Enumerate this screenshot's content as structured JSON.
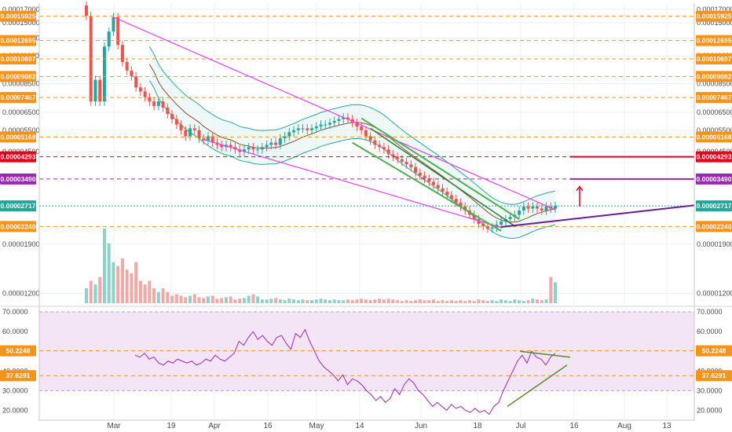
{
  "chart_data": {
    "type": "candlestick",
    "x_tick_labels": [
      "Mar",
      "19",
      "Apr",
      "16",
      "May",
      "14",
      "Jun",
      "18",
      "Jul",
      "16",
      "Aug",
      "13"
    ],
    "price_axis": {
      "scale": "log",
      "ylim": [
        1.08e-05,
        0.00018
      ],
      "tick_labels": [
        "0.00017000",
        "0.00015000",
        "0.00013000",
        "0.00011000",
        "0.00008500",
        "0.00006500",
        "0.00005500",
        "0.00004500",
        "0.00001900",
        "0.00001200"
      ],
      "tick_values": [
        0.00017,
        0.00015,
        0.00013,
        0.00011,
        8.5e-05,
        6.5e-05,
        5.5e-05,
        4.5e-05,
        1.9e-05,
        1.2e-05
      ]
    },
    "levels": [
      {
        "label": "0.00015925",
        "value": 0.00015925,
        "color": "#f7931a"
      },
      {
        "label": "0.00012695",
        "value": 0.00012695,
        "color": "#f7931a"
      },
      {
        "label": "0.00010697",
        "value": 0.00010697,
        "color": "#f7931a"
      },
      {
        "label": "0.00009082",
        "value": 9.082e-05,
        "color": "#f7931a"
      },
      {
        "label": "0.00007467",
        "value": 7.467e-05,
        "color": "#f7931a"
      },
      {
        "label": "0.00005168",
        "value": 5.168e-05,
        "color": "#f7931a"
      },
      {
        "label": "0.00004293",
        "value": 4.293e-05,
        "color": "#e3001b"
      },
      {
        "label": "0.00003490",
        "value": 3.49e-05,
        "color": "#9c27b0"
      },
      {
        "label": "0.00002717",
        "value": 2.717e-05,
        "color": "#26a69a"
      },
      {
        "label": "0.00002240",
        "value": 2.24e-05,
        "color": "#f7931a"
      }
    ],
    "candles_close": [
      0.00016,
      7.2e-05,
      8.8e-05,
      7.2e-05,
      0.00012,
      0.000138,
      0.000158,
      0.000122,
      0.000104,
      9.6e-05,
      9.1e-05,
      8.2e-05,
      7.9e-05,
      7.5e-05,
      7.2e-05,
      6.9e-05,
      7.2e-05,
      6.8e-05,
      6.4e-05,
      6.1e-05,
      5.8e-05,
      5.5e-05,
      5.2e-05,
      5.6e-05,
      5.5e-05,
      5.1e-05,
      5e-05,
      5.2e-05,
      4.9e-05,
      4.8e-05,
      4.7e-05,
      4.8e-05,
      4.7e-05,
      4.6e-05,
      4.5e-05,
      4.6e-05,
      4.7e-05,
      4.6e-05,
      4.6e-05,
      4.7e-05,
      4.8e-05,
      4.9e-05,
      4.8e-05,
      5.1e-05,
      5.2e-05,
      5.4e-05,
      5.5e-05,
      5.6e-05,
      5.6e-05,
      5.5e-05,
      5.6e-05,
      5.7e-05,
      5.8e-05,
      5.8e-05,
      5.9e-05,
      6e-05,
      6.1e-05,
      6.2e-05,
      6.1e-05,
      5.9e-05,
      5.7e-05,
      5.5e-05,
      5.2e-05,
      5e-05,
      4.8e-05,
      4.7e-05,
      4.6e-05,
      4.4e-05,
      4.3e-05,
      4.2e-05,
      4.1e-05,
      4e-05,
      3.9e-05,
      3.7e-05,
      3.6e-05,
      3.5e-05,
      3.4e-05,
      3.3e-05,
      3.2e-05,
      3.1e-05,
      3e-05,
      2.9e-05,
      2.8e-05,
      2.7e-05,
      2.6e-05,
      2.5e-05,
      2.4e-05,
      2.3e-05,
      2.25e-05,
      2.2e-05,
      2.22e-05,
      2.28e-05,
      2.35e-05,
      2.4e-05,
      2.45e-05,
      2.5e-05,
      2.6e-05,
      2.7e-05,
      2.65e-05,
      2.7e-05,
      2.65e-05,
      2.6e-05,
      2.7e-05,
      2.65e-05,
      2.717e-05
    ],
    "rsi_axis": {
      "ylim": [
        15,
        72
      ],
      "tick_labels": [
        "70.0000",
        "60.0000",
        "50.0000",
        "40.0000",
        "30.0000",
        "20.0000"
      ],
      "tick_values": [
        70,
        60,
        50,
        40,
        30,
        20
      ],
      "band": [
        30,
        70
      ]
    },
    "rsi_levels": [
      {
        "label": "50.2248",
        "value": 50.2248,
        "color": "#f7931a"
      },
      {
        "label": "37.6291",
        "value": 37.6291,
        "color": "#f7931a"
      }
    ],
    "rsi_values": [
      48,
      47,
      49,
      46,
      47,
      44,
      43,
      45,
      44,
      46,
      45,
      44,
      45,
      43,
      44,
      46,
      45,
      48,
      46,
      45,
      47,
      49,
      55,
      53,
      57,
      60,
      56,
      58,
      55,
      53,
      57,
      58,
      54,
      51,
      59,
      57,
      61,
      55,
      50,
      45,
      42,
      40,
      38,
      35,
      38,
      33,
      36,
      35,
      33,
      30,
      28,
      25,
      27,
      24,
      26,
      31,
      28,
      33,
      36,
      34,
      30,
      28,
      25,
      22,
      24,
      22,
      20,
      23,
      21,
      22,
      20,
      19,
      21,
      19,
      20,
      18,
      22,
      24,
      30,
      35,
      40,
      45,
      48,
      44,
      50,
      47,
      46,
      43,
      47,
      49
    ],
    "volume_relative": [
      0.2,
      0.3,
      0.25,
      0.35,
      1.0,
      0.8,
      0.55,
      0.5,
      0.6,
      0.45,
      0.4,
      0.55,
      0.3,
      0.25,
      0.3,
      0.2,
      0.15,
      0.2,
      0.15,
      0.1,
      0.12,
      0.1,
      0.08,
      0.1,
      0.12,
      0.08,
      0.07,
      0.09,
      0.1,
      0.06,
      0.07,
      0.08,
      0.09,
      0.05,
      0.06,
      0.07,
      0.1,
      0.12,
      0.09,
      0.05,
      0.05,
      0.06,
      0.07,
      0.05,
      0.04,
      0.06,
      0.05,
      0.04,
      0.05,
      0.04,
      0.04,
      0.05,
      0.06,
      0.05,
      0.04,
      0.05,
      0.04,
      0.04,
      0.05,
      0.04,
      0.05,
      0.06,
      0.05,
      0.04,
      0.05,
      0.06,
      0.05,
      0.06,
      0.05,
      0.04,
      0.03,
      0.04,
      0.03,
      0.04,
      0.05,
      0.04,
      0.04,
      0.05,
      0.03,
      0.04,
      0.03,
      0.04,
      0.03,
      0.04,
      0.03,
      0.04,
      0.03,
      0.05,
      0.04,
      0.03,
      0.04,
      0.03,
      0.05,
      0.04,
      0.03,
      0.05,
      0.04,
      0.03,
      0.04,
      0.06,
      0.05,
      0.04,
      0.05,
      0.35,
      0.28
    ],
    "colors": {
      "up": "#26a69a",
      "down": "#ef5350",
      "trendline": "#e040fb",
      "channel": "#4caf50",
      "rsi_line": "#9c27b0",
      "rsi_band": "#f3e5f5",
      "support_line": "#6a1b9a",
      "arrow": "#e3001b"
    },
    "grid": true
  }
}
